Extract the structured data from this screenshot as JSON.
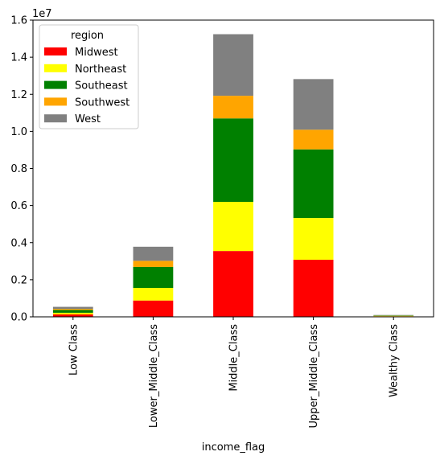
{
  "chart_data": {
    "type": "bar",
    "stacked": true,
    "title": "",
    "xlabel": "income_flag",
    "ylabel": "",
    "y_offset_label": "1e7",
    "ylim": [
      0,
      16000000
    ],
    "yticks": [
      0,
      2000000,
      4000000,
      6000000,
      8000000,
      10000000,
      12000000,
      14000000,
      16000000
    ],
    "ytick_labels": [
      "0.0",
      "0.2",
      "0.4",
      "0.6",
      "0.8",
      "1.0",
      "1.2",
      "1.4",
      "1.6"
    ],
    "grid": false,
    "legend": {
      "title": "region",
      "placement": "top-left"
    },
    "categories": [
      "Low Class",
      "Lower_Middle_Class",
      "Middle_Class",
      "Upper_Middle_Class",
      "Wealthy Class"
    ],
    "series": [
      {
        "name": "Midwest",
        "color": "#ff0000",
        "values": [
          130000,
          880000,
          3550000,
          3080000,
          30000
        ]
      },
      {
        "name": "Northeast",
        "color": "#ffff00",
        "values": [
          90000,
          680000,
          2650000,
          2250000,
          20000
        ]
      },
      {
        "name": "Southeast",
        "color": "#008000",
        "values": [
          150000,
          1130000,
          4500000,
          3700000,
          20000
        ]
      },
      {
        "name": "Southwest",
        "color": "#ffa500",
        "values": [
          60000,
          330000,
          1220000,
          1060000,
          10000
        ]
      },
      {
        "name": "West",
        "color": "#808080",
        "values": [
          110000,
          760000,
          3320000,
          2730000,
          20000
        ]
      }
    ]
  }
}
